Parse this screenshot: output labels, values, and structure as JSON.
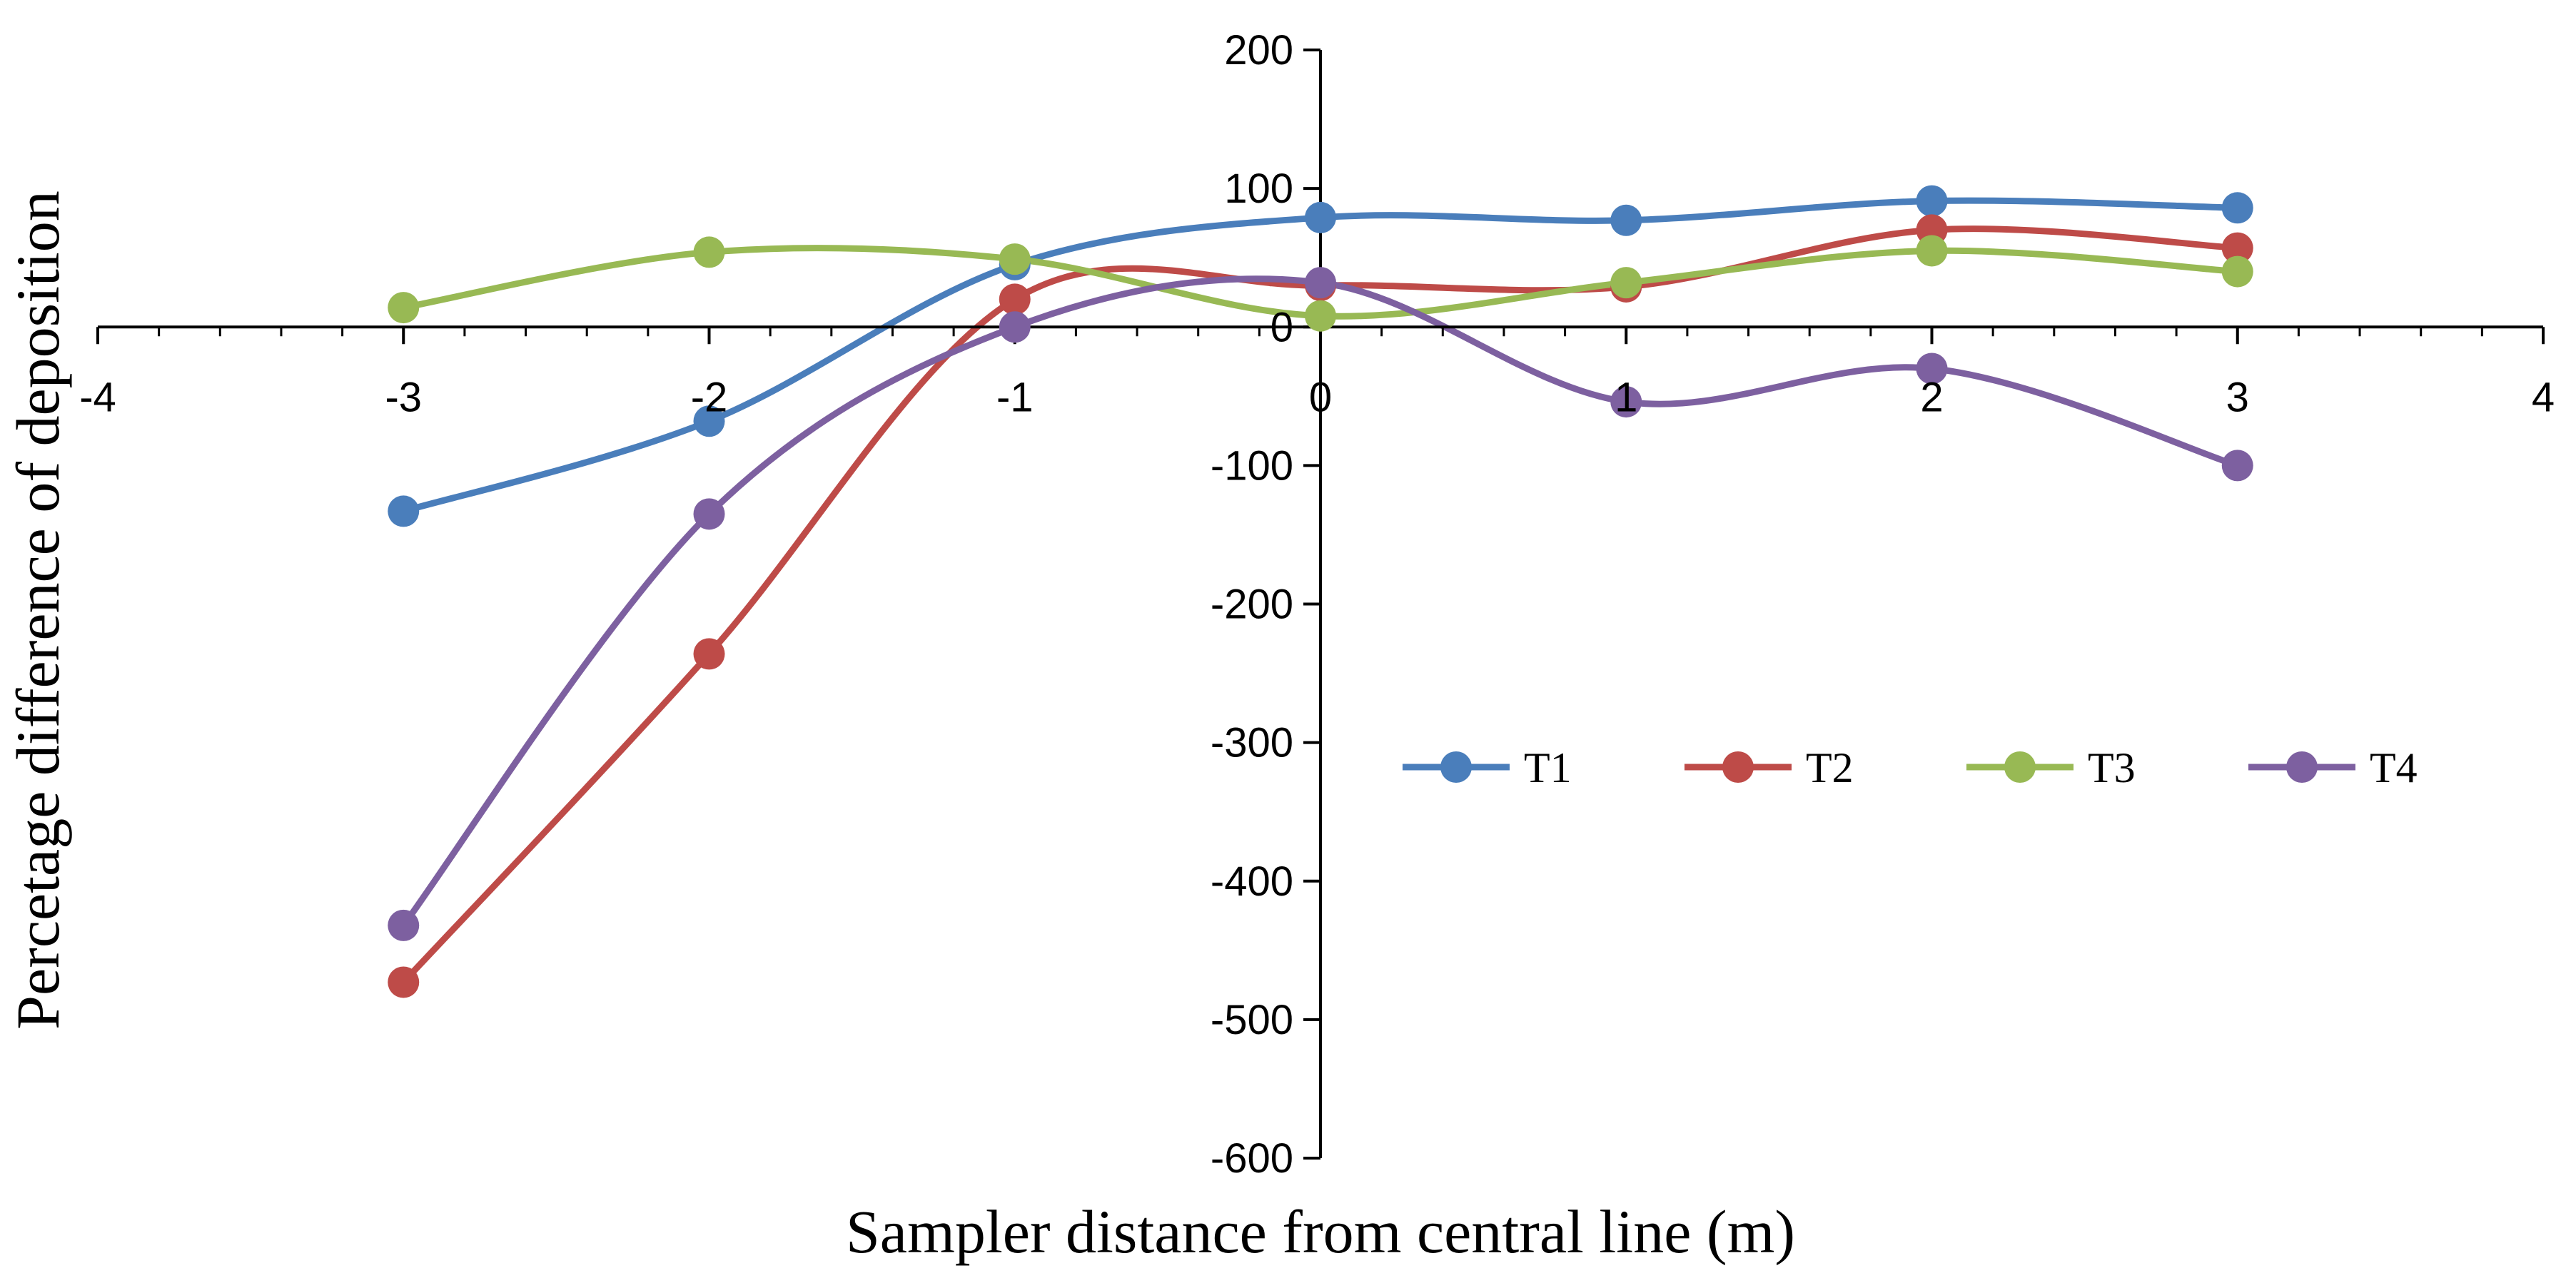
{
  "chart_data": {
    "type": "scatter",
    "title": "",
    "xlabel": "Sampler distance  from  central line  (m)",
    "ylabel": "Percetage difference  of deposition",
    "xlim": [
      -4,
      4
    ],
    "ylim": [
      -600,
      200
    ],
    "x_ticks": [
      -4,
      -3,
      -2,
      -1,
      0,
      1,
      2,
      3,
      4
    ],
    "y_ticks": [
      200,
      100,
      0,
      -100,
      -200,
      -300,
      -400,
      -500,
      -600
    ],
    "x_tick_labels": [
      "-4",
      "-3",
      "-2",
      "-1",
      "0",
      "1",
      "2",
      "3",
      "4"
    ],
    "y_tick_labels": [
      "200",
      "100",
      "0",
      "-100",
      "-200",
      "-300",
      "-400",
      "-500",
      "-600"
    ],
    "grid": false,
    "smooth_lines": true,
    "legend_position": "right-middle",
    "x": [
      -3,
      -2,
      -1,
      0,
      1,
      2,
      3
    ],
    "series": [
      {
        "name": "T1",
        "color": "#4a7ebb",
        "values": [
          -133,
          -68,
          45,
          79,
          77,
          91,
          86
        ]
      },
      {
        "name": "T2",
        "color": "#be4b48",
        "values": [
          -473,
          -236,
          20,
          30,
          29,
          70,
          57
        ]
      },
      {
        "name": "T3",
        "color": "#98b954",
        "values": [
          14,
          54,
          49,
          8,
          32,
          55,
          40
        ]
      },
      {
        "name": "T4",
        "color": "#7d60a0",
        "values": [
          -432,
          -135,
          0,
          32,
          -54,
          -30,
          -100
        ]
      }
    ]
  }
}
